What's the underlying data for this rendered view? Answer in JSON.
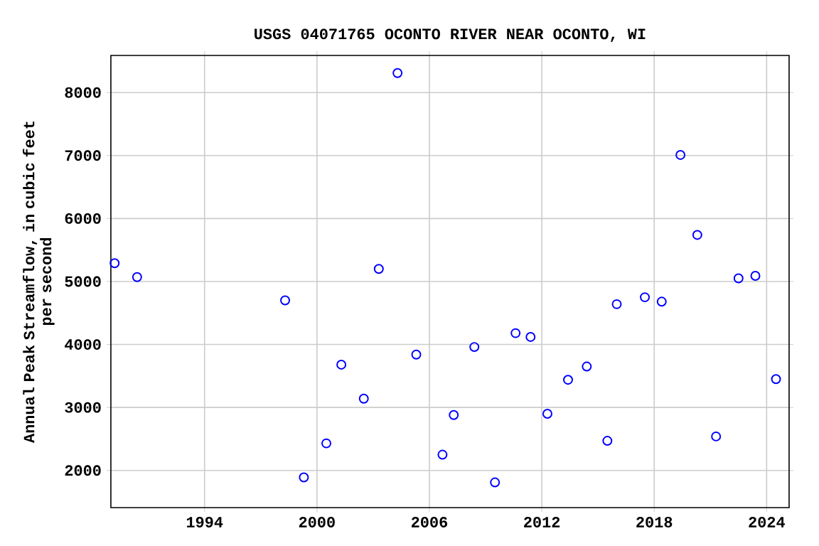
{
  "chart_data": {
    "type": "scatter",
    "title": "USGS 04071765 OCONTO RIVER NEAR OCONTO, WI",
    "ylabel": "Annual Peak Streamflow, in cubic feet\nper second",
    "x": [
      1989.2,
      1990.4,
      1998.3,
      1999.3,
      2000.5,
      2001.3,
      2002.5,
      2003.3,
      2004.3,
      2005.3,
      2006.7,
      2007.3,
      2008.4,
      2009.5,
      2010.6,
      2011.4,
      2012.3,
      2013.4,
      2014.4,
      2015.5,
      2016.0,
      2017.5,
      2018.4,
      2019.4,
      2020.3,
      2021.3,
      2022.5,
      2023.4,
      2024.5
    ],
    "values": [
      5290,
      5070,
      4700,
      1890,
      2430,
      3680,
      3140,
      5200,
      8310,
      3840,
      2250,
      2880,
      3960,
      1810,
      4180,
      4120,
      2900,
      3440,
      3650,
      2470,
      4640,
      4750,
      4680,
      7010,
      5740,
      2540,
      5050,
      5090,
      3450
    ],
    "color": "#0000ff",
    "marker": "circle",
    "grid": true,
    "xlim": [
      1989.0,
      2025.2
    ],
    "xticks": [
      1994,
      2000,
      2006,
      2012,
      2018,
      2024
    ],
    "ylim": [
      1410,
      8590
    ],
    "yticks": [
      2000,
      3000,
      4000,
      5000,
      6000,
      7000,
      8000
    ]
  }
}
